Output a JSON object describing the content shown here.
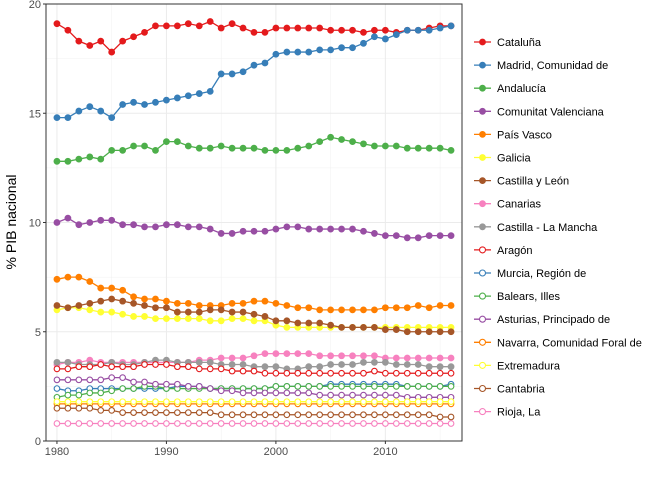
{
  "chart_data": {
    "type": "line",
    "title": "",
    "xlabel": "",
    "ylabel": "% PIB nacional",
    "xlim": [
      1979,
      2017
    ],
    "ylim": [
      0,
      20
    ],
    "x_ticks": [
      1980,
      1990,
      2000,
      2010
    ],
    "y_ticks": [
      0,
      5,
      10,
      15,
      20
    ],
    "grid": true,
    "legend_position": "right",
    "years": [
      1980,
      1981,
      1982,
      1983,
      1984,
      1985,
      1986,
      1987,
      1988,
      1989,
      1990,
      1991,
      1992,
      1993,
      1994,
      1995,
      1996,
      1997,
      1998,
      1999,
      2000,
      2001,
      2002,
      2003,
      2004,
      2005,
      2006,
      2007,
      2008,
      2009,
      2010,
      2011,
      2012,
      2013,
      2014,
      2015,
      2016
    ],
    "series": [
      {
        "name": "Cataluña",
        "color": "#e41a1c",
        "filled": true,
        "values": [
          19.1,
          18.8,
          18.3,
          18.1,
          18.3,
          17.8,
          18.3,
          18.5,
          18.7,
          19.0,
          19.0,
          19.0,
          19.1,
          19.0,
          19.2,
          18.9,
          19.1,
          18.9,
          18.7,
          18.7,
          18.9,
          18.9,
          18.9,
          18.9,
          18.9,
          18.8,
          18.8,
          18.8,
          18.7,
          18.8,
          18.8,
          18.7,
          18.8,
          18.8,
          18.9,
          19.0,
          19.0
        ]
      },
      {
        "name": "Madrid, Comunidad de",
        "color": "#377eb8",
        "filled": true,
        "values": [
          14.8,
          14.8,
          15.1,
          15.3,
          15.1,
          14.8,
          15.4,
          15.5,
          15.4,
          15.5,
          15.6,
          15.7,
          15.8,
          15.9,
          16.0,
          16.8,
          16.8,
          16.9,
          17.2,
          17.3,
          17.7,
          17.8,
          17.8,
          17.8,
          17.9,
          17.9,
          18.0,
          18.0,
          18.2,
          18.5,
          18.4,
          18.6,
          18.8,
          18.8,
          18.8,
          18.9,
          19.0
        ]
      },
      {
        "name": "Andalucía",
        "color": "#4daf4a",
        "filled": true,
        "values": [
          12.8,
          12.8,
          12.9,
          13.0,
          12.9,
          13.3,
          13.3,
          13.5,
          13.5,
          13.3,
          13.7,
          13.7,
          13.5,
          13.4,
          13.4,
          13.5,
          13.4,
          13.4,
          13.4,
          13.3,
          13.3,
          13.3,
          13.4,
          13.5,
          13.7,
          13.9,
          13.8,
          13.7,
          13.6,
          13.5,
          13.5,
          13.5,
          13.4,
          13.4,
          13.4,
          13.4,
          13.3
        ]
      },
      {
        "name": "Comunitat Valenciana",
        "color": "#984ea3",
        "filled": true,
        "values": [
          10.0,
          10.2,
          9.9,
          10.0,
          10.1,
          10.1,
          9.9,
          9.9,
          9.8,
          9.8,
          9.9,
          9.9,
          9.8,
          9.8,
          9.7,
          9.5,
          9.5,
          9.6,
          9.6,
          9.6,
          9.7,
          9.8,
          9.8,
          9.7,
          9.7,
          9.7,
          9.7,
          9.7,
          9.6,
          9.5,
          9.4,
          9.4,
          9.3,
          9.3,
          9.4,
          9.4,
          9.4
        ]
      },
      {
        "name": "País Vasco",
        "color": "#ff7f00",
        "filled": true,
        "values": [
          7.4,
          7.5,
          7.5,
          7.3,
          7.0,
          7.0,
          6.9,
          6.6,
          6.5,
          6.5,
          6.4,
          6.3,
          6.3,
          6.2,
          6.2,
          6.2,
          6.3,
          6.3,
          6.4,
          6.4,
          6.3,
          6.2,
          6.1,
          6.1,
          6.0,
          6.0,
          6.0,
          6.0,
          6.0,
          6.0,
          6.1,
          6.1,
          6.1,
          6.2,
          6.1,
          6.2,
          6.2
        ]
      },
      {
        "name": "Galicia",
        "color": "#ffff33",
        "filled": true,
        "values": [
          6.0,
          6.1,
          6.1,
          6.0,
          5.9,
          5.9,
          5.8,
          5.7,
          5.7,
          5.6,
          5.6,
          5.6,
          5.6,
          5.6,
          5.5,
          5.5,
          5.6,
          5.6,
          5.5,
          5.5,
          5.3,
          5.2,
          5.2,
          5.2,
          5.2,
          5.2,
          5.2,
          5.2,
          5.2,
          5.2,
          5.2,
          5.2,
          5.2,
          5.2,
          5.2,
          5.2,
          5.2
        ]
      },
      {
        "name": "Castilla y León",
        "color": "#a65628",
        "filled": true,
        "values": [
          6.2,
          6.1,
          6.2,
          6.3,
          6.4,
          6.5,
          6.4,
          6.3,
          6.2,
          6.1,
          6.1,
          5.9,
          5.9,
          5.9,
          6.0,
          6.0,
          5.9,
          5.9,
          5.8,
          5.7,
          5.5,
          5.5,
          5.4,
          5.4,
          5.4,
          5.3,
          5.2,
          5.2,
          5.2,
          5.2,
          5.1,
          5.1,
          5.0,
          5.0,
          5.0,
          5.0,
          5.0
        ]
      },
      {
        "name": "Canarias",
        "color": "#f781bf",
        "filled": true,
        "values": [
          3.5,
          3.6,
          3.6,
          3.7,
          3.6,
          3.6,
          3.6,
          3.6,
          3.6,
          3.6,
          3.6,
          3.6,
          3.6,
          3.7,
          3.7,
          3.8,
          3.8,
          3.8,
          3.9,
          4.0,
          4.0,
          4.0,
          4.0,
          4.0,
          3.9,
          3.9,
          3.9,
          3.9,
          3.9,
          3.9,
          3.8,
          3.8,
          3.8,
          3.8,
          3.8,
          3.8,
          3.8
        ]
      },
      {
        "name": "Castilla - La Mancha",
        "color": "#999999",
        "filled": true,
        "values": [
          3.6,
          3.6,
          3.5,
          3.5,
          3.5,
          3.6,
          3.5,
          3.5,
          3.6,
          3.7,
          3.7,
          3.6,
          3.6,
          3.6,
          3.6,
          3.5,
          3.5,
          3.5,
          3.4,
          3.4,
          3.4,
          3.3,
          3.3,
          3.4,
          3.4,
          3.5,
          3.5,
          3.5,
          3.6,
          3.6,
          3.6,
          3.5,
          3.5,
          3.5,
          3.4,
          3.4,
          3.4
        ]
      },
      {
        "name": "Aragón",
        "color": "#e41a1c",
        "filled": false,
        "values": [
          3.3,
          3.3,
          3.4,
          3.4,
          3.5,
          3.4,
          3.4,
          3.4,
          3.5,
          3.5,
          3.5,
          3.4,
          3.4,
          3.3,
          3.3,
          3.3,
          3.2,
          3.2,
          3.2,
          3.1,
          3.1,
          3.1,
          3.1,
          3.1,
          3.1,
          3.1,
          3.1,
          3.1,
          3.1,
          3.2,
          3.1,
          3.1,
          3.1,
          3.1,
          3.1,
          3.1,
          3.1
        ]
      },
      {
        "name": "Murcia, Región de",
        "color": "#377eb8",
        "filled": false,
        "values": [
          2.4,
          2.3,
          2.3,
          2.4,
          2.4,
          2.4,
          2.4,
          2.4,
          2.4,
          2.4,
          2.4,
          2.5,
          2.5,
          2.5,
          2.4,
          2.4,
          2.4,
          2.4,
          2.4,
          2.4,
          2.5,
          2.5,
          2.5,
          2.5,
          2.5,
          2.6,
          2.6,
          2.6,
          2.6,
          2.6,
          2.6,
          2.6,
          2.5,
          2.5,
          2.5,
          2.5,
          2.6
        ]
      },
      {
        "name": "Balears, Illes",
        "color": "#4daf4a",
        "filled": false,
        "values": [
          2.0,
          2.1,
          2.1,
          2.2,
          2.2,
          2.3,
          2.4,
          2.4,
          2.5,
          2.5,
          2.4,
          2.4,
          2.4,
          2.4,
          2.4,
          2.4,
          2.4,
          2.4,
          2.4,
          2.4,
          2.5,
          2.5,
          2.5,
          2.5,
          2.5,
          2.5,
          2.5,
          2.5,
          2.5,
          2.5,
          2.5,
          2.5,
          2.5,
          2.5,
          2.5,
          2.5,
          2.5
        ]
      },
      {
        "name": "Asturias, Principado de",
        "color": "#984ea3",
        "filled": false,
        "values": [
          2.8,
          2.8,
          2.8,
          2.8,
          2.8,
          2.9,
          2.9,
          2.7,
          2.7,
          2.6,
          2.6,
          2.6,
          2.5,
          2.5,
          2.4,
          2.3,
          2.3,
          2.2,
          2.2,
          2.2,
          2.2,
          2.2,
          2.2,
          2.2,
          2.1,
          2.1,
          2.1,
          2.1,
          2.1,
          2.1,
          2.1,
          2.1,
          2.0,
          2.0,
          2.0,
          2.0,
          2.0
        ]
      },
      {
        "name": "Navarra, Comunidad Foral de",
        "color": "#ff7f00",
        "filled": false,
        "values": [
          1.7,
          1.7,
          1.7,
          1.7,
          1.7,
          1.7,
          1.7,
          1.7,
          1.7,
          1.7,
          1.7,
          1.7,
          1.7,
          1.7,
          1.7,
          1.7,
          1.7,
          1.7,
          1.7,
          1.7,
          1.7,
          1.7,
          1.7,
          1.7,
          1.7,
          1.7,
          1.7,
          1.7,
          1.7,
          1.7,
          1.7,
          1.7,
          1.7,
          1.7,
          1.7,
          1.7,
          1.7
        ]
      },
      {
        "name": "Extremadura",
        "color": "#ffff33",
        "filled": false,
        "values": [
          1.8,
          1.8,
          1.8,
          1.8,
          1.8,
          1.8,
          1.8,
          1.8,
          1.8,
          1.8,
          1.8,
          1.8,
          1.8,
          1.8,
          1.8,
          1.8,
          1.8,
          1.8,
          1.8,
          1.8,
          1.8,
          1.8,
          1.8,
          1.8,
          1.8,
          1.8,
          1.8,
          1.8,
          1.8,
          1.8,
          1.8,
          1.8,
          1.8,
          1.8,
          1.8,
          1.8,
          1.8
        ]
      },
      {
        "name": "Cantabria",
        "color": "#a65628",
        "filled": false,
        "values": [
          1.5,
          1.5,
          1.5,
          1.5,
          1.4,
          1.4,
          1.3,
          1.3,
          1.3,
          1.3,
          1.3,
          1.3,
          1.3,
          1.3,
          1.3,
          1.2,
          1.2,
          1.2,
          1.2,
          1.2,
          1.2,
          1.2,
          1.2,
          1.2,
          1.2,
          1.2,
          1.2,
          1.2,
          1.2,
          1.2,
          1.2,
          1.2,
          1.2,
          1.2,
          1.2,
          1.1,
          1.1
        ]
      },
      {
        "name": "Rioja, La",
        "color": "#f781bf",
        "filled": false,
        "values": [
          0.8,
          0.8,
          0.8,
          0.8,
          0.8,
          0.8,
          0.8,
          0.8,
          0.8,
          0.8,
          0.8,
          0.8,
          0.8,
          0.8,
          0.8,
          0.8,
          0.8,
          0.8,
          0.8,
          0.8,
          0.8,
          0.8,
          0.8,
          0.8,
          0.8,
          0.8,
          0.8,
          0.8,
          0.8,
          0.8,
          0.8,
          0.8,
          0.8,
          0.8,
          0.8,
          0.8,
          0.8
        ]
      }
    ]
  }
}
